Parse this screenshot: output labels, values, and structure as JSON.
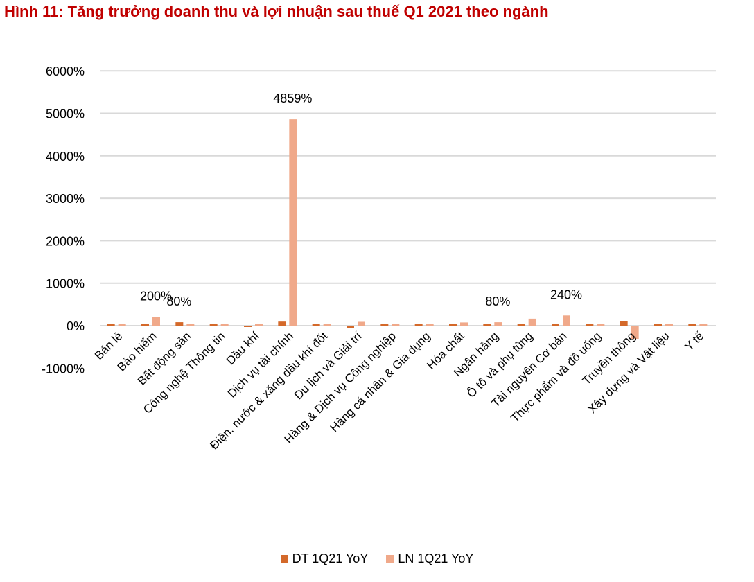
{
  "title": "Hình 11: Tăng trưởng doanh thu và lợi nhuận sau thuế Q1 2021 theo ngành",
  "chart_data": {
    "type": "bar",
    "title": "Hình 11: Tăng trưởng doanh thu và lợi nhuận sau thuế Q1 2021 theo ngành",
    "xlabel": "",
    "ylabel": "",
    "ylim": [
      -1000,
      6000
    ],
    "yticks": [
      -1000,
      0,
      1000,
      2000,
      3000,
      4000,
      5000,
      6000
    ],
    "ytick_labels": [
      "-1000%",
      "0%",
      "1000%",
      "2000%",
      "3000%",
      "4000%",
      "5000%",
      "6000%"
    ],
    "grid": true,
    "legend_position": "bottom",
    "categories": [
      "Bán lẻ",
      "Bảo hiểm",
      "Bất động sản",
      "Công nghệ Thông tin",
      "Dầu khí",
      "Dịch vụ tài chính",
      "Điện, nước & xăng dầu khí đốt",
      "Du lịch và Giải trí",
      "Hàng & Dịch vụ Công nghiệp",
      "Hàng cá nhân & Gia dụng",
      "Hóa chất",
      "Ngân hàng",
      "Ô tô và phụ tùng",
      "Tài nguyên Cơ bản",
      "Thực phẩm và đồ uống",
      "Truyền thông",
      "Xây dựng và Vật liệu",
      "Y tế"
    ],
    "series": [
      {
        "name": "DT 1Q21 YoY",
        "color": "#d4692a",
        "values": [
          5,
          0,
          80,
          5,
          -15,
          95,
          0,
          -50,
          0,
          20,
          25,
          20,
          25,
          45,
          0,
          100,
          0,
          0
        ]
      },
      {
        "name": "LN 1Q21 YoY",
        "color": "#f0a98a",
        "values": [
          30,
          200,
          20,
          10,
          25,
          4859,
          0,
          90,
          30,
          30,
          75,
          80,
          165,
          240,
          0,
          -310,
          0,
          0
        ]
      }
    ],
    "data_labels": [
      {
        "category": "Bảo hiểm",
        "series": "LN 1Q21 YoY",
        "text": "200%"
      },
      {
        "category": "Bất động sản",
        "series": "DT 1Q21 YoY",
        "text": "80%"
      },
      {
        "category": "Dịch vụ tài chính",
        "series": "LN 1Q21 YoY",
        "text": "4859%"
      },
      {
        "category": "Ngân hàng",
        "series": "LN 1Q21 YoY",
        "text": "80%"
      },
      {
        "category": "Tài nguyên Cơ bản",
        "series": "LN 1Q21 YoY",
        "text": "240%"
      }
    ]
  }
}
